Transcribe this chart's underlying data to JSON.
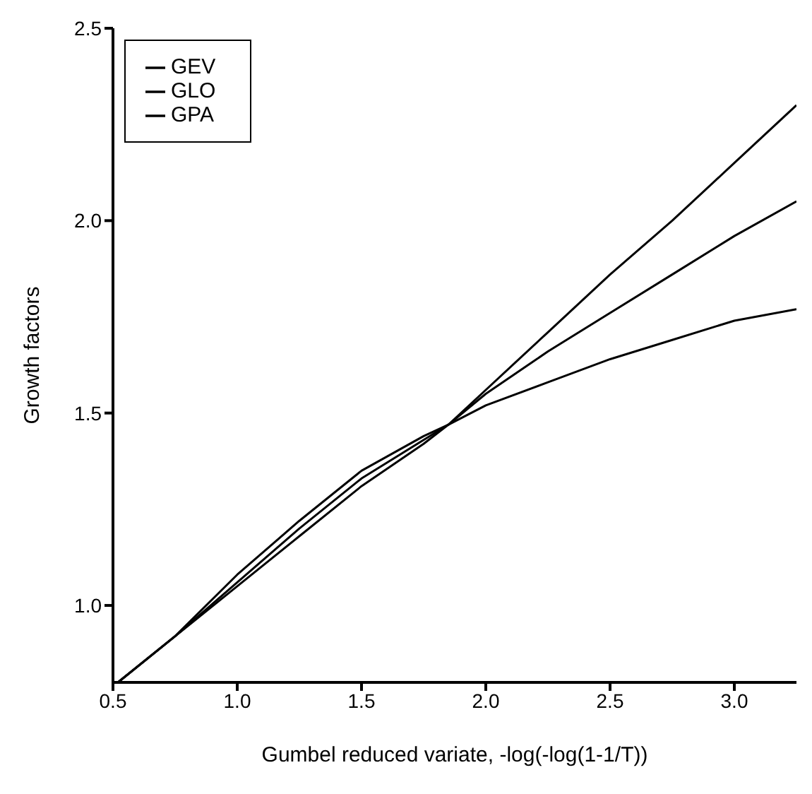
{
  "chart_data": {
    "type": "line",
    "xlabel": "Gumbel reduced variate, -log(-log(1-1/T))",
    "ylabel": "Growth factors",
    "x": [
      0.52,
      0.75,
      1.0,
      1.25,
      1.5,
      1.75,
      1.85,
      2.0,
      2.25,
      2.5,
      2.75,
      3.0,
      3.25
    ],
    "series": [
      {
        "name": "GEV",
        "color": "#000000",
        "values": [
          0.8,
          0.92,
          1.05,
          1.18,
          1.31,
          1.42,
          1.47,
          1.56,
          1.71,
          1.86,
          2.0,
          2.15,
          2.3
        ]
      },
      {
        "name": "GLO",
        "color": "#000000",
        "values": [
          0.8,
          0.92,
          1.06,
          1.2,
          1.33,
          1.43,
          1.47,
          1.55,
          1.66,
          1.76,
          1.86,
          1.96,
          2.05
        ]
      },
      {
        "name": "GPA",
        "color": "#000000",
        "values": [
          0.8,
          0.92,
          1.08,
          1.22,
          1.35,
          1.44,
          1.47,
          1.52,
          1.58,
          1.64,
          1.69,
          1.74,
          1.77
        ]
      }
    ],
    "xlim": [
      0.5,
      3.25
    ],
    "xticks": [
      0.5,
      {
        "value": 1,
        "label": "1.0"
      },
      1.5,
      {
        "value": 2,
        "label": "2.0"
      },
      2.5,
      {
        "value": 3,
        "label": "3.0"
      }
    ],
    "ylim": [
      0.8,
      2.5
    ],
    "yticks": [
      {
        "value": 1,
        "label": "1.0"
      },
      1.5,
      {
        "value": 2,
        "label": "2.0"
      },
      2.5
    ],
    "grid": false,
    "legend": "top left",
    "marker": "none",
    "line_style": "solid"
  }
}
